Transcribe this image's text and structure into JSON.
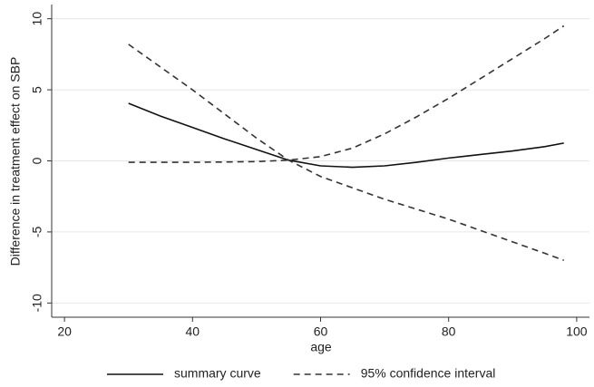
{
  "chart_data": {
    "type": "line",
    "x_label": "age",
    "y_label": "Difference in treatment effect on SBP",
    "x": [
      30,
      35,
      40,
      45,
      50,
      55,
      60,
      65,
      70,
      75,
      80,
      85,
      90,
      95,
      98
    ],
    "series": [
      {
        "name": "summary curve",
        "color": "#111111",
        "dash": "none",
        "lines": [
          [
            4.05,
            3.15,
            2.35,
            1.55,
            0.8,
            0.05,
            -0.35,
            -0.45,
            -0.35,
            -0.1,
            0.2,
            0.45,
            0.7,
            1.0,
            1.25
          ]
        ]
      },
      {
        "name": "95% confidence interval",
        "color": "#333333",
        "dash": "7 5",
        "lines": [
          [
            8.2,
            6.6,
            5.0,
            3.3,
            1.6,
            0.05,
            -1.1,
            -1.9,
            -2.7,
            -3.4,
            -4.1,
            -4.9,
            -5.7,
            -6.5,
            -7.0
          ],
          [
            -0.1,
            -0.1,
            -0.1,
            -0.08,
            -0.05,
            0.05,
            0.3,
            0.9,
            1.9,
            3.1,
            4.4,
            5.8,
            7.2,
            8.6,
            9.5
          ]
        ]
      }
    ],
    "xlim": [
      18,
      102
    ],
    "xticks": [
      20,
      40,
      60,
      80,
      100
    ],
    "ylim": [
      -11,
      11
    ],
    "yticks": [
      -10,
      -5,
      0,
      5,
      10
    ],
    "grid": true,
    "legend_position": "bottom"
  }
}
